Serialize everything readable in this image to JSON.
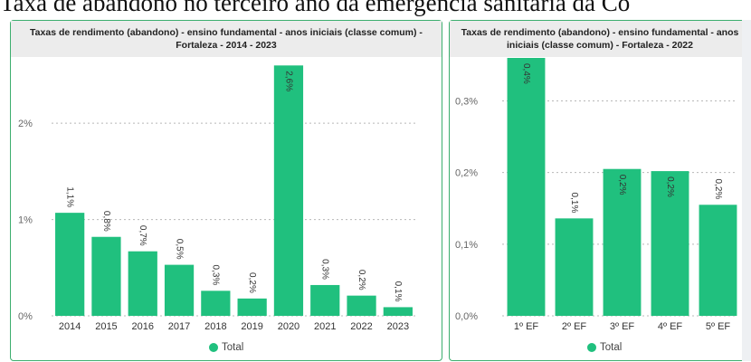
{
  "page": {
    "headline": "Taxa de abandono no terceiro ano da emergência sanitária da Co"
  },
  "colors": {
    "bar": "#20c07e",
    "panel_border": "#3cae6e",
    "header_bg": "#ececec",
    "grid": "#b8b8b8"
  },
  "legend_label": "Total",
  "chart_data": [
    {
      "type": "bar",
      "title": "Taxas de rendimento (abandono) - ensino fundamental - anos iniciais (classe comum) - Fortaleza - 2014 - 2023",
      "categories": [
        "2014",
        "2015",
        "2016",
        "2017",
        "2018",
        "2019",
        "2020",
        "2021",
        "2022",
        "2023"
      ],
      "values": [
        1.07,
        0.82,
        0.67,
        0.53,
        0.26,
        0.18,
        2.6,
        0.32,
        0.21,
        0.09
      ],
      "data_labels": [
        "1,1%",
        "0,8%",
        "0,7%",
        "0,5%",
        "0,3%",
        "0,2%",
        "2,6%",
        "0,3%",
        "0,2%",
        "0,1%"
      ],
      "yticks": [
        0,
        1,
        2
      ],
      "ytick_labels": [
        "0%",
        "1%",
        "2%"
      ],
      "ylim": [
        0,
        2.65
      ],
      "grid": true,
      "legend": "bottom",
      "series": [
        {
          "name": "Total"
        }
      ]
    },
    {
      "type": "bar",
      "title": "Taxas de rendimento (abandono) - ensino fundamental - anos iniciais (classe comum) - Fortaleza - 2022",
      "categories": [
        "1º EF",
        "2º EF",
        "3º EF",
        "4º EF",
        "5º EF"
      ],
      "values": [
        0.36,
        0.136,
        0.205,
        0.202,
        0.155
      ],
      "data_labels": [
        "0,4%",
        "0,1%",
        "0,2%",
        "0,2%",
        "0,2%"
      ],
      "yticks": [
        0,
        0.1,
        0.2,
        0.3
      ],
      "ytick_labels": [
        "0,0%",
        "0,1%",
        "0,2%",
        "0,3%"
      ],
      "ylim": [
        0,
        0.36
      ],
      "grid": true,
      "legend": "bottom",
      "series": [
        {
          "name": "Total"
        }
      ]
    }
  ]
}
